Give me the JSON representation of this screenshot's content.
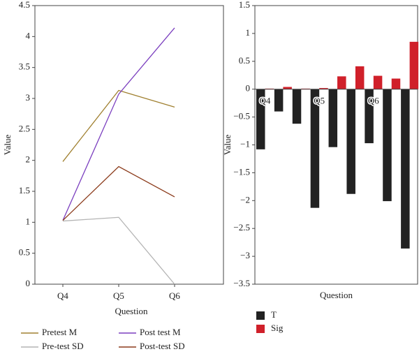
{
  "chart_data": [
    {
      "type": "line",
      "xlabel": "Question",
      "ylabel": "Value",
      "categories": [
        "Q4",
        "Q5",
        "Q6"
      ],
      "series": [
        {
          "name": "Pretest M",
          "color": "#a08030",
          "values": [
            1.98,
            3.13,
            2.86
          ]
        },
        {
          "name": "Post test M",
          "color": "#7b3fbf",
          "values": [
            1.03,
            3.07,
            4.14
          ]
        },
        {
          "name": "Pre-test SD",
          "color": "#b4b4b4",
          "values": [
            1.02,
            1.08,
            0
          ]
        },
        {
          "name": "Post-test SD",
          "color": "#8b3a1a",
          "values": [
            1.03,
            1.9,
            1.41
          ]
        }
      ],
      "ylim": [
        0,
        4.5
      ],
      "yticks": [
        0,
        0.5,
        1,
        1.5,
        2,
        2.5,
        3,
        3.5,
        4,
        4.5
      ]
    },
    {
      "type": "bar",
      "xlabel": "Question",
      "ylabel": "Value",
      "categories": [
        "Q4",
        null,
        null,
        "Q5",
        null,
        null,
        "Q6",
        null,
        null
      ],
      "series": [
        {
          "name": "T",
          "color": "#222222",
          "values": [
            -1.08,
            -0.4,
            -0.62,
            -2.13,
            -1.04,
            -1.88,
            -0.97,
            -2.01,
            -2.86
          ]
        },
        {
          "name": "Sig",
          "color": "#d0202a",
          "values": [
            0.01,
            0.04,
            0.01,
            0.02,
            0.23,
            0.41,
            0.24,
            0.19,
            0.85
          ]
        }
      ],
      "ylim": [
        -3.5,
        1.5
      ],
      "yticks": [
        {
          "value": -3.5,
          "label": "−3.5"
        },
        {
          "value": -3,
          "label": "−3"
        },
        {
          "value": -2.5,
          "label": "−2.5"
        },
        {
          "value": -2,
          "label": "−2"
        },
        {
          "value": -1.5,
          "label": "−1.5"
        },
        {
          "value": -1,
          "label": "−1"
        },
        {
          "value": -0.5,
          "label": "−0.5"
        },
        0,
        0.5,
        1,
        1.5
      ]
    }
  ]
}
